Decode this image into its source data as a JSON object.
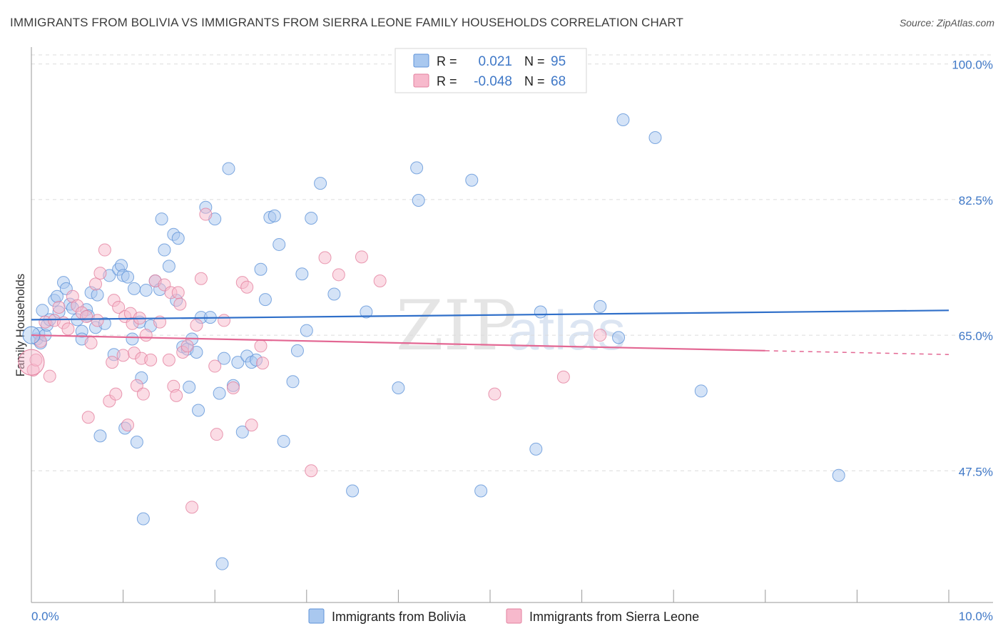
{
  "header": {
    "title": "IMMIGRANTS FROM BOLIVIA VS IMMIGRANTS FROM SIERRA LEONE FAMILY HOUSEHOLDS CORRELATION CHART",
    "source": "Source: ZipAtlas.com"
  },
  "watermark": {
    "zip": "ZIP",
    "atlas": "atlas"
  },
  "legend": {
    "r_label": "R =",
    "n_label": "N =",
    "rows": [
      {
        "r": "0.021",
        "n": "95",
        "color": "#a9c8ef",
        "stroke": "#5f93d8"
      },
      {
        "r": "-0.048",
        "n": "68",
        "color": "#f7b9cc",
        "stroke": "#e3819f"
      }
    ]
  },
  "chart_data": {
    "type": "scatter",
    "title": "IMMIGRANTS FROM BOLIVIA VS IMMIGRANTS FROM SIERRA LEONE FAMILY HOUSEHOLDS CORRELATION CHART",
    "xlabel": "",
    "ylabel": "Family Households",
    "xlim": [
      0,
      10
    ],
    "ylim": [
      30.5,
      102
    ],
    "x_tick_labels": [
      "0.0%",
      "10.0%"
    ],
    "y_ticks": [
      47.5,
      65.0,
      82.5,
      100.0
    ],
    "y_tick_labels": [
      "47.5%",
      "65.0%",
      "82.5%",
      "100.0%"
    ],
    "series": [
      {
        "name": "Immigrants from Bolivia",
        "fill": "#a9c8ef",
        "stroke": "#5f93d8",
        "line_color": "#2f6fc9",
        "trend": {
          "x1": 0,
          "y1": 67.0,
          "x2": 10,
          "y2": 68.2,
          "solid_until": 10
        },
        "points": [
          [
            0.06,
            64.5
          ],
          [
            0.08,
            65.2
          ],
          [
            0.1,
            64.0
          ],
          [
            0.12,
            68.2
          ],
          [
            0.15,
            65.0
          ],
          [
            0.17,
            66.3
          ],
          [
            0.2,
            67.0
          ],
          [
            0.25,
            69.5
          ],
          [
            0.28,
            70.0
          ],
          [
            0.3,
            68.0
          ],
          [
            0.35,
            71.8
          ],
          [
            0.38,
            71.0
          ],
          [
            0.42,
            69.0
          ],
          [
            0.45,
            68.5
          ],
          [
            0.5,
            67.0
          ],
          [
            0.55,
            65.5
          ],
          [
            0.6,
            68.3
          ],
          [
            0.62,
            67.5
          ],
          [
            0.65,
            70.5
          ],
          [
            0.7,
            66.0
          ],
          [
            0.72,
            70.2
          ],
          [
            0.75,
            52.0
          ],
          [
            0.8,
            66.5
          ],
          [
            0.85,
            72.7
          ],
          [
            0.9,
            62.5
          ],
          [
            0.95,
            73.5
          ],
          [
            0.98,
            74.0
          ],
          [
            1.0,
            72.7
          ],
          [
            1.02,
            53.0
          ],
          [
            1.05,
            72.5
          ],
          [
            1.1,
            64.5
          ],
          [
            1.12,
            71.0
          ],
          [
            1.15,
            51.2
          ],
          [
            1.18,
            66.7
          ],
          [
            1.2,
            59.5
          ],
          [
            1.25,
            70.8
          ],
          [
            1.3,
            66.2
          ],
          [
            1.35,
            72.0
          ],
          [
            1.4,
            70.9
          ],
          [
            1.42,
            80.0
          ],
          [
            1.45,
            76.0
          ],
          [
            1.5,
            73.9
          ],
          [
            1.55,
            78.0
          ],
          [
            1.58,
            69.5
          ],
          [
            1.6,
            77.5
          ],
          [
            1.65,
            63.5
          ],
          [
            1.7,
            63.2
          ],
          [
            1.72,
            58.3
          ],
          [
            1.75,
            64.5
          ],
          [
            1.8,
            62.8
          ],
          [
            1.82,
            55.3
          ],
          [
            1.85,
            67.3
          ],
          [
            1.9,
            81.5
          ],
          [
            1.95,
            67.3
          ],
          [
            2.0,
            80.0
          ],
          [
            2.05,
            57.5
          ],
          [
            2.1,
            62.0
          ],
          [
            2.15,
            86.5
          ],
          [
            2.2,
            58.5
          ],
          [
            2.25,
            61.5
          ],
          [
            2.3,
            52.5
          ],
          [
            2.35,
            62.3
          ],
          [
            2.4,
            61.5
          ],
          [
            2.45,
            61.8
          ],
          [
            2.5,
            73.5
          ],
          [
            2.55,
            69.6
          ],
          [
            2.6,
            80.2
          ],
          [
            2.65,
            80.4
          ],
          [
            2.7,
            76.7
          ],
          [
            2.75,
            51.3
          ],
          [
            2.85,
            59.0
          ],
          [
            2.9,
            63.0
          ],
          [
            2.95,
            72.9
          ],
          [
            3.0,
            65.6
          ],
          [
            3.05,
            80.1
          ],
          [
            3.15,
            84.6
          ],
          [
            3.3,
            70.3
          ],
          [
            3.5,
            44.9
          ],
          [
            3.65,
            68.0
          ],
          [
            4.0,
            58.2
          ],
          [
            4.2,
            86.6
          ],
          [
            4.22,
            82.4
          ],
          [
            4.8,
            85.0
          ],
          [
            4.9,
            44.9
          ],
          [
            5.5,
            50.3
          ],
          [
            5.55,
            68.0
          ],
          [
            6.2,
            68.7
          ],
          [
            6.4,
            64.7
          ],
          [
            6.45,
            92.8
          ],
          [
            6.8,
            90.5
          ],
          [
            7.3,
            57.8
          ],
          [
            8.8,
            46.9
          ],
          [
            1.22,
            41.3
          ],
          [
            2.08,
            35.5
          ],
          [
            0.55,
            64.5
          ]
        ]
      },
      {
        "name": "Immigrants from Sierra Leone",
        "fill": "#f7b9cc",
        "stroke": "#e3819f",
        "line_color": "#e36793",
        "trend": {
          "x1": 0,
          "y1": 65.0,
          "x2": 10,
          "y2": 62.5,
          "solid_until": 8.0
        },
        "points": [
          [
            0.02,
            60.5
          ],
          [
            0.05,
            61.8
          ],
          [
            0.1,
            64.2
          ],
          [
            0.15,
            66.7
          ],
          [
            0.2,
            59.7
          ],
          [
            0.25,
            66.9
          ],
          [
            0.3,
            68.6
          ],
          [
            0.35,
            66.6
          ],
          [
            0.4,
            65.8
          ],
          [
            0.45,
            70.0
          ],
          [
            0.5,
            68.8
          ],
          [
            0.55,
            67.9
          ],
          [
            0.6,
            67.4
          ],
          [
            0.62,
            54.4
          ],
          [
            0.65,
            64.0
          ],
          [
            0.7,
            71.6
          ],
          [
            0.72,
            66.9
          ],
          [
            0.75,
            73.0
          ],
          [
            0.8,
            76.0
          ],
          [
            0.85,
            56.5
          ],
          [
            0.88,
            61.5
          ],
          [
            0.9,
            69.5
          ],
          [
            0.92,
            57.4
          ],
          [
            0.95,
            68.6
          ],
          [
            1.0,
            62.4
          ],
          [
            1.02,
            67.4
          ],
          [
            1.05,
            53.4
          ],
          [
            1.08,
            67.8
          ],
          [
            1.1,
            66.5
          ],
          [
            1.12,
            62.7
          ],
          [
            1.15,
            58.5
          ],
          [
            1.18,
            67.2
          ],
          [
            1.2,
            62.0
          ],
          [
            1.22,
            57.4
          ],
          [
            1.25,
            65.0
          ],
          [
            1.3,
            61.8
          ],
          [
            1.35,
            72.0
          ],
          [
            1.4,
            66.7
          ],
          [
            1.45,
            71.5
          ],
          [
            1.5,
            61.8
          ],
          [
            1.52,
            70.5
          ],
          [
            1.55,
            58.4
          ],
          [
            1.58,
            57.2
          ],
          [
            1.6,
            70.5
          ],
          [
            1.62,
            69.0
          ],
          [
            1.65,
            62.8
          ],
          [
            1.7,
            63.6
          ],
          [
            1.75,
            42.8
          ],
          [
            1.8,
            66.3
          ],
          [
            1.85,
            72.3
          ],
          [
            1.9,
            80.6
          ],
          [
            2.0,
            61.0
          ],
          [
            2.02,
            52.2
          ],
          [
            2.1,
            66.9
          ],
          [
            2.2,
            58.2
          ],
          [
            2.3,
            71.8
          ],
          [
            2.35,
            71.2
          ],
          [
            2.4,
            53.4
          ],
          [
            2.5,
            63.6
          ],
          [
            2.52,
            61.4
          ],
          [
            3.05,
            47.5
          ],
          [
            3.2,
            75.0
          ],
          [
            3.35,
            72.8
          ],
          [
            3.6,
            75.1
          ],
          [
            3.8,
            72.0
          ],
          [
            5.05,
            57.4
          ],
          [
            5.8,
            59.6
          ],
          [
            6.2,
            65.0
          ]
        ]
      }
    ],
    "legend_position": "top-center",
    "grid": true
  }
}
